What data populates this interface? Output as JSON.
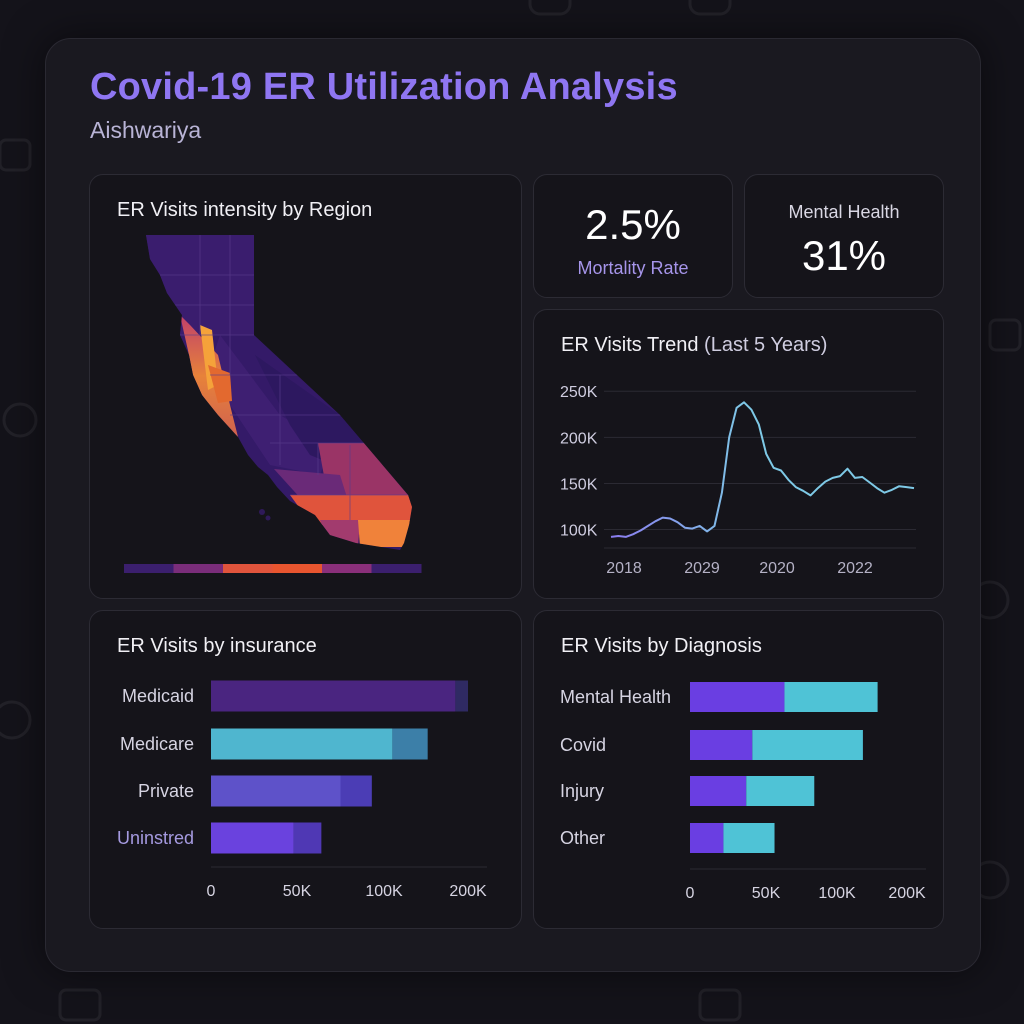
{
  "header": {
    "title": "Covid-19 ER Utilization Analysis",
    "subtitle": "Aishwariya"
  },
  "map_card": {
    "title": "ER Visits intensity by Region",
    "region": "California",
    "scale_colors": [
      "#3b1f6e",
      "#7a2d7a",
      "#e0543c",
      "#e8552f",
      "#8a2f7a",
      "#3b1f6e"
    ]
  },
  "kpis": {
    "mortality": {
      "value": "2.5%",
      "label": "Mortality Rate",
      "label_color": "#a695ea"
    },
    "mental": {
      "value": "31%",
      "label": "Mental Health",
      "label_color": "#d9d7e4"
    }
  },
  "trend_card": {
    "title_main": "ER Visits Trend",
    "title_sub": "(Last 5 Years)"
  },
  "insurance_card": {
    "title": "ER Visits by insurance"
  },
  "diagnosis_card": {
    "title": "ER Visits by Diagnosis"
  },
  "colors": {
    "accent": "#8f76f2",
    "trend_line": "#7ec9e6",
    "trend_line_start": "#8b7cf0",
    "cyan": "#4fc3d6",
    "purple": "#6e3ee0",
    "dark_purple": "#4a2580",
    "grid": "#2b2a33"
  },
  "chart_data": [
    {
      "type": "line",
      "title": "ER Visits Trend (Last 5 Years)",
      "x_ticks": [
        "2018",
        "2029",
        "2020",
        "2022"
      ],
      "y_ticks": [
        "250K",
        "200K",
        "150K",
        "100K"
      ],
      "ylim": [
        80000,
        260000
      ],
      "grid": true,
      "series": [
        {
          "values": [
            92000,
            93000,
            92000,
            95000,
            99000,
            104000,
            109000,
            113000,
            112000,
            108000,
            102000,
            101000,
            104000,
            98000,
            104000,
            140000,
            200000,
            232000,
            238000,
            230000,
            214000,
            182000,
            167000,
            164000,
            154000,
            146000,
            142000,
            137000,
            145000,
            152000,
            156000,
            158000,
            166000,
            156000,
            157000,
            151000,
            145000,
            140000,
            143000,
            147000,
            146000,
            145000
          ]
        }
      ]
    },
    {
      "type": "bar",
      "title": "ER Visits by insurance",
      "orientation": "horizontal",
      "categories": [
        "Medicaid",
        "Medicare",
        "Private",
        "Uninstred"
      ],
      "series": [
        {
          "values": [
            185000,
            110000,
            75000,
            48000
          ]
        },
        {
          "values": [
            30000,
            42000,
            18000,
            16000
          ]
        }
      ],
      "segment_colors": [
        [
          "#4a2580",
          "#2f2a63"
        ],
        [
          "#4fb6cf",
          "#3c7fa8"
        ],
        [
          "#5e52c9",
          "#4b3db5"
        ],
        [
          "#6a42de",
          "#4f38b4"
        ]
      ],
      "x_ticks": [
        "0",
        "50K",
        "100K",
        "200K"
      ],
      "tick_values": [
        0,
        50000,
        100000,
        200000
      ],
      "category_label_colors": [
        "#d6d4e2",
        "#d6d4e2",
        "#d6d4e2",
        "#a59ae0"
      ]
    },
    {
      "type": "bar",
      "title": "ER Visits by Diagnosis",
      "orientation": "horizontal",
      "categories": [
        "Mental Health",
        "Covid",
        "Injury",
        "Other"
      ],
      "series": [
        {
          "values": [
            63000,
            41000,
            37000,
            22000
          ]
        },
        {
          "values": [
            95000,
            96000,
            47000,
            34000
          ]
        }
      ],
      "segment_colors": [
        [
          "#6a3ee2",
          "#4fc3d6"
        ]
      ],
      "x_ticks": [
        "0",
        "50K",
        "100K",
        "200K"
      ],
      "tick_values": [
        0,
        50000,
        100000,
        200000
      ]
    }
  ]
}
